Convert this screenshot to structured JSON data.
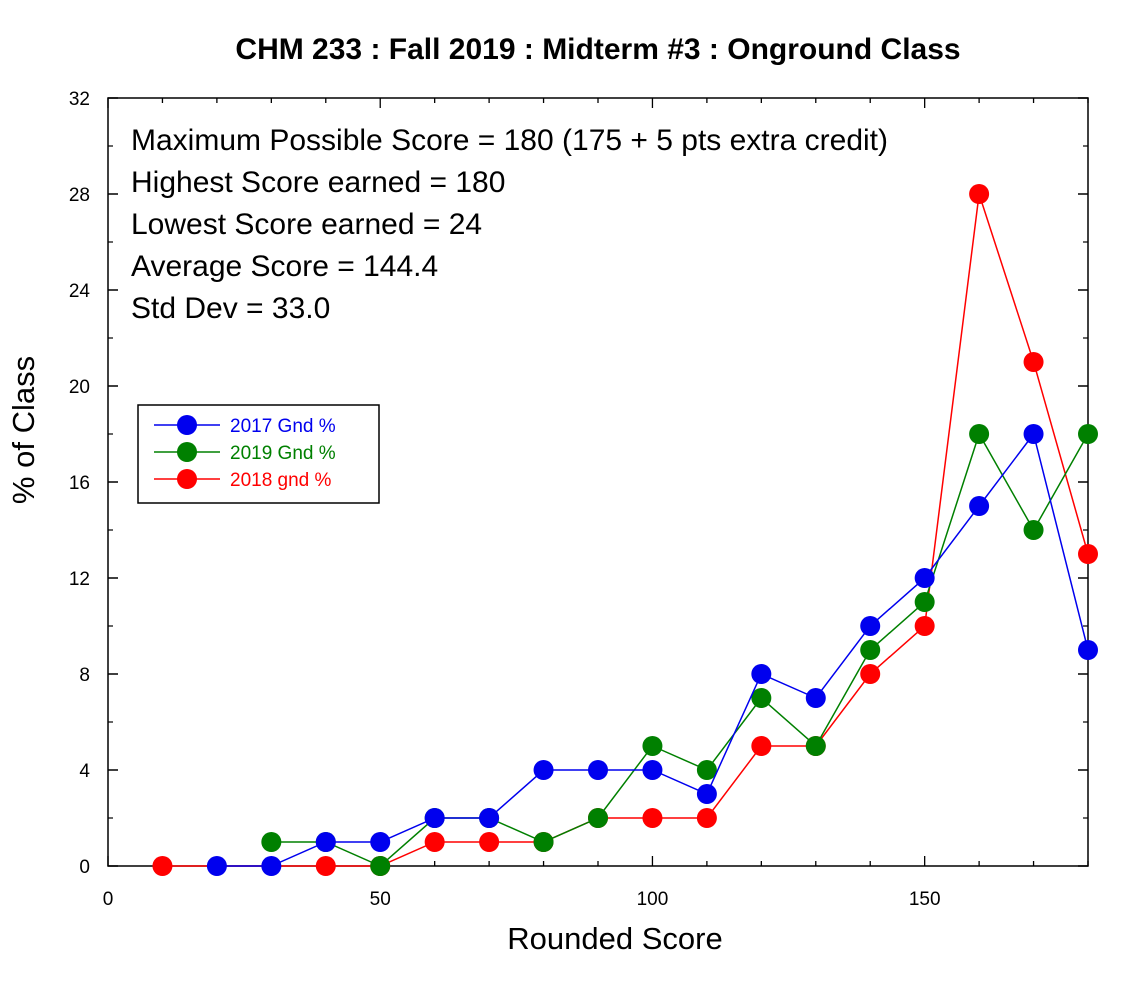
{
  "chart_data": {
    "type": "line",
    "title": "CHM 233 : Fall 2019 : Midterm #3 : Onground Class",
    "xlabel": "Rounded Score",
    "ylabel": "% of Class",
    "xlim": [
      0,
      180
    ],
    "ylim": [
      0,
      32
    ],
    "xticks": [
      0,
      50,
      100,
      150
    ],
    "yticks": [
      0,
      4,
      8,
      12,
      16,
      20,
      24,
      28,
      32
    ],
    "grid": false,
    "legend_position": "left",
    "annotations": [
      "Maximum Possible Score = 180 (175 + 5 pts extra credit)",
      "Highest Score earned = 180",
      "Lowest Score earned = 24",
      "Average Score = 144.4",
      "Std Dev = 33.0"
    ],
    "series": [
      {
        "name": "2017 Gnd %",
        "color": "#0000ee",
        "x": [
          20,
          30,
          40,
          50,
          60,
          70,
          80,
          90,
          100,
          110,
          120,
          130,
          140,
          150,
          160,
          170,
          180
        ],
        "y": [
          0,
          0,
          1,
          1,
          2,
          2,
          4,
          4,
          4,
          3,
          8,
          7,
          10,
          12,
          15,
          18,
          9
        ]
      },
      {
        "name": "2019 Gnd %",
        "color": "#008000",
        "x": [
          30,
          40,
          50,
          60,
          70,
          80,
          90,
          100,
          110,
          120,
          130,
          140,
          150,
          160,
          170,
          180
        ],
        "y": [
          1,
          1,
          0,
          2,
          2,
          1,
          2,
          5,
          4,
          7,
          5,
          9,
          11,
          18,
          14,
          18
        ]
      },
      {
        "name": "2018 gnd %",
        "color": "#ff0000",
        "x": [
          10,
          40,
          50,
          60,
          70,
          80,
          90,
          100,
          110,
          120,
          130,
          140,
          150,
          160,
          170,
          180
        ],
        "y": [
          0,
          0,
          0,
          1,
          1,
          1,
          2,
          2,
          2,
          5,
          5,
          8,
          10,
          28,
          21,
          13
        ]
      }
    ]
  }
}
